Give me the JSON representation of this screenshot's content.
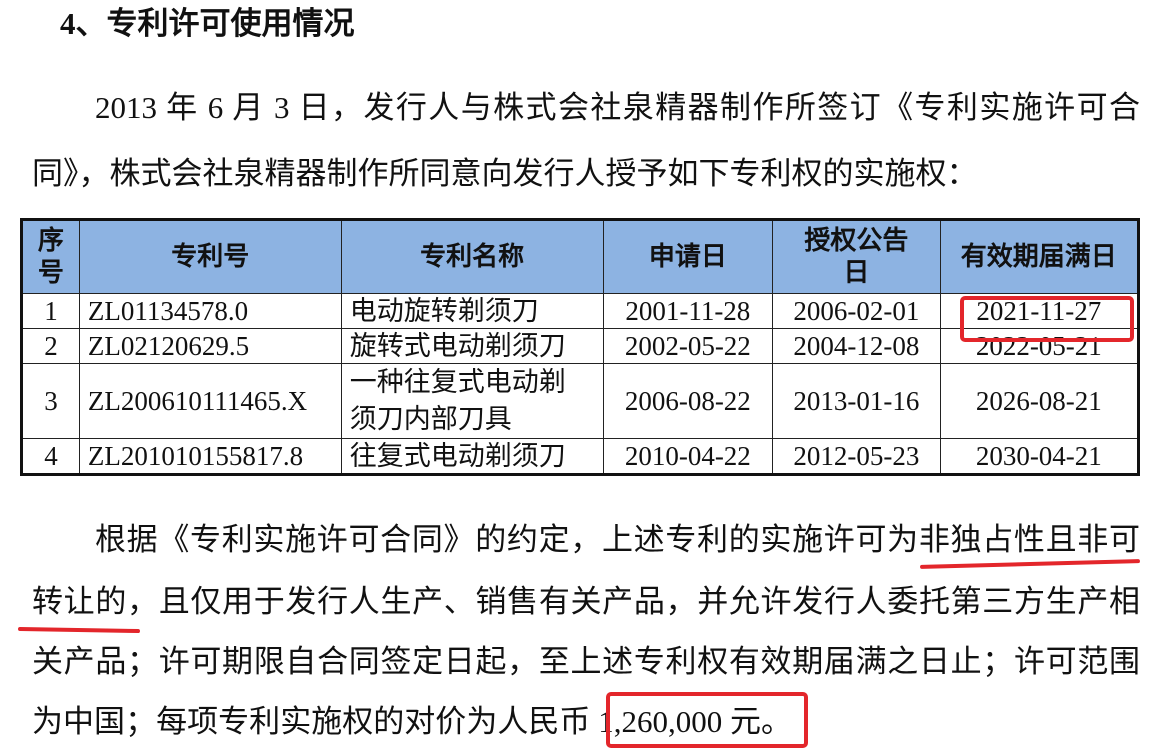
{
  "heading": "4、专利许可使用情况",
  "para1": [
    "2013 年 6 月 3 日，发行人与株式会社泉精器制作所签订《专利实施许可合",
    "同》，株式会社泉精器制作所同意向发行人授予如下专利权的实施权："
  ],
  "table": {
    "headers": [
      "序号",
      "专利号",
      "专利名称",
      "申请日",
      "授权公告日",
      "有效期届满日"
    ],
    "rows": [
      [
        "1",
        "ZL01134578.0",
        "电动旋转剃须刀",
        "2001-11-28",
        "2006-02-01",
        "2021-11-27"
      ],
      [
        "2",
        "ZL02120629.5",
        "旋转式电动剃须刀",
        "2002-05-22",
        "2004-12-08",
        "2022-05-21"
      ],
      [
        "3",
        "ZL200610111465.X",
        "一种往复式电动剃须刀内部刀具",
        "2006-08-22",
        "2013-01-16",
        "2026-08-21"
      ],
      [
        "4",
        "ZL201010155817.8",
        "往复式电动剃须刀",
        "2010-04-22",
        "2012-05-23",
        "2030-04-21"
      ]
    ]
  },
  "para2": [
    "根据《专利实施许可合同》的约定，上述专利的实施许可为非独占性且非可",
    "转让的，且仅用于发行人生产、销售有关产品，并允许发行人委托第三方生产相",
    "关产品；许可期限自合同签定日起，至上述专利权有效期届满之日止；许可范围",
    "为中国；每项专利实施权的对价为人民币 1,260,000 元。"
  ],
  "annotation_color": "#e3262b",
  "header_bg": "#8db3e2"
}
